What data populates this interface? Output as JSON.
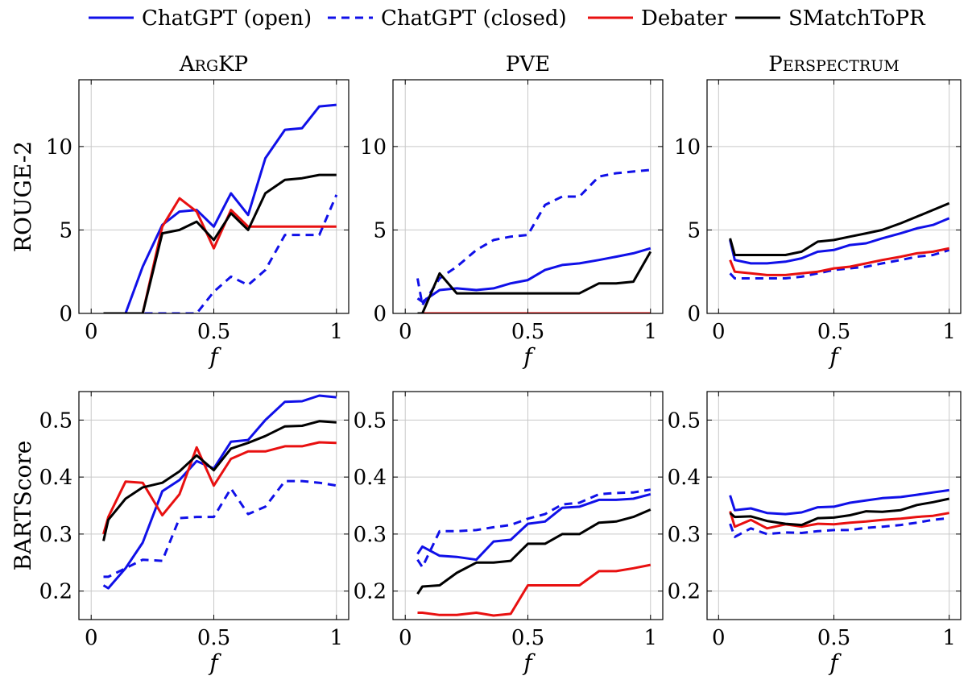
{
  "legend": [
    {
      "label": "ChatGPT (open)",
      "color": "#1010e8",
      "dash": "solid"
    },
    {
      "label": "ChatGPT (closed)",
      "color": "#1010e8",
      "dash": "dashed"
    },
    {
      "label": "Debater",
      "color": "#e81010",
      "dash": "solid"
    },
    {
      "label": "SMatchToPR",
      "color": "#000000",
      "dash": "solid"
    }
  ],
  "chart_data": [
    {
      "type": "line",
      "title": "ArgKP",
      "xlabel": "f",
      "ylabel": "ROUGE-2",
      "xlim": [
        -0.05,
        1.05
      ],
      "ylim": [
        0,
        14
      ],
      "xticks": [
        {
          "v": 0,
          "label": "0"
        },
        {
          "v": 0.5,
          "label": "0.5"
        },
        {
          "v": 1,
          "label": "1"
        }
      ],
      "yticks": [
        {
          "v": 0,
          "label": "0"
        },
        {
          "v": 5,
          "label": "5"
        },
        {
          "v": 10,
          "label": "10"
        }
      ],
      "grid": true,
      "x": [
        0.05,
        0.07,
        0.14,
        0.21,
        0.29,
        0.36,
        0.43,
        0.5,
        0.57,
        0.64,
        0.71,
        0.79,
        0.86,
        0.93,
        1.0
      ],
      "series": [
        {
          "name": "ChatGPT (open)",
          "values": [
            0,
            0,
            0,
            2.8,
            5.3,
            6.1,
            6.2,
            5.2,
            7.2,
            5.9,
            9.3,
            11.0,
            11.1,
            12.4,
            12.5
          ]
        },
        {
          "name": "ChatGPT (closed)",
          "values": [
            0,
            0,
            0,
            0,
            0,
            0,
            0,
            1.3,
            2.2,
            1.7,
            2.6,
            4.7,
            4.7,
            4.7,
            7.1
          ]
        },
        {
          "name": "Debater",
          "values": [
            0,
            0,
            0,
            0,
            5.2,
            6.9,
            6.1,
            3.9,
            6.2,
            5.2,
            5.2,
            5.2,
            5.2,
            5.2,
            5.2
          ]
        },
        {
          "name": "SMatchToPR",
          "values": [
            0,
            0,
            0,
            0,
            4.8,
            5.0,
            5.5,
            4.4,
            6.0,
            5.0,
            7.2,
            8.0,
            8.1,
            8.3,
            8.3
          ]
        }
      ]
    },
    {
      "type": "line",
      "title": "PVE",
      "xlabel": "f",
      "ylabel": "",
      "xlim": [
        -0.05,
        1.05
      ],
      "ylim": [
        0,
        14
      ],
      "xticks": [
        {
          "v": 0,
          "label": "0"
        },
        {
          "v": 0.5,
          "label": "0.5"
        },
        {
          "v": 1,
          "label": "1"
        }
      ],
      "yticks": [
        {
          "v": 0,
          "label": "0"
        },
        {
          "v": 5,
          "label": "5"
        },
        {
          "v": 10,
          "label": "10"
        }
      ],
      "grid": true,
      "x": [
        0.05,
        0.07,
        0.14,
        0.21,
        0.29,
        0.36,
        0.43,
        0.5,
        0.57,
        0.64,
        0.71,
        0.79,
        0.86,
        0.93,
        1.0
      ],
      "series": [
        {
          "name": "ChatGPT (open)",
          "values": [
            0.9,
            0.7,
            1.4,
            1.5,
            1.4,
            1.5,
            1.8,
            2.0,
            2.6,
            2.9,
            3.0,
            3.2,
            3.4,
            3.6,
            3.9
          ]
        },
        {
          "name": "ChatGPT (closed)",
          "values": [
            2.1,
            0.5,
            2.1,
            2.8,
            3.8,
            4.4,
            4.6,
            4.7,
            6.5,
            7.0,
            7.0,
            8.2,
            8.4,
            8.5,
            8.6
          ]
        },
        {
          "name": "Debater",
          "values": [
            0,
            0,
            0,
            0,
            0,
            0,
            0,
            0,
            0,
            0,
            0,
            0,
            0,
            0,
            0
          ]
        },
        {
          "name": "SMatchToPR",
          "values": [
            0,
            0,
            2.4,
            1.2,
            1.2,
            1.2,
            1.2,
            1.2,
            1.2,
            1.2,
            1.2,
            1.8,
            1.8,
            1.9,
            3.7
          ]
        }
      ]
    },
    {
      "type": "line",
      "title": "Perspectrum",
      "xlabel": "f",
      "ylabel": "",
      "xlim": [
        -0.05,
        1.05
      ],
      "ylim": [
        0,
        14
      ],
      "xticks": [
        {
          "v": 0,
          "label": "0"
        },
        {
          "v": 0.5,
          "label": "0.5"
        },
        {
          "v": 1,
          "label": "1"
        }
      ],
      "yticks": [
        {
          "v": 0,
          "label": "0"
        },
        {
          "v": 5,
          "label": "5"
        },
        {
          "v": 10,
          "label": "10"
        }
      ],
      "grid": true,
      "x": [
        0.05,
        0.07,
        0.14,
        0.21,
        0.29,
        0.36,
        0.43,
        0.5,
        0.57,
        0.64,
        0.71,
        0.79,
        0.86,
        0.93,
        1.0
      ],
      "series": [
        {
          "name": "ChatGPT (open)",
          "values": [
            4.4,
            3.2,
            3.0,
            3.0,
            3.1,
            3.3,
            3.7,
            3.8,
            4.1,
            4.2,
            4.5,
            4.8,
            5.1,
            5.3,
            5.7
          ]
        },
        {
          "name": "ChatGPT (closed)",
          "values": [
            2.4,
            2.1,
            2.1,
            2.1,
            2.1,
            2.2,
            2.4,
            2.6,
            2.7,
            2.8,
            3.0,
            3.2,
            3.4,
            3.5,
            3.8
          ]
        },
        {
          "name": "Debater",
          "values": [
            3.2,
            2.5,
            2.4,
            2.3,
            2.3,
            2.4,
            2.5,
            2.7,
            2.8,
            3.0,
            3.2,
            3.4,
            3.6,
            3.7,
            3.9
          ]
        },
        {
          "name": "SMatchToPR",
          "values": [
            4.5,
            3.5,
            3.5,
            3.5,
            3.5,
            3.7,
            4.3,
            4.4,
            4.6,
            4.8,
            5.0,
            5.4,
            5.8,
            6.2,
            6.6
          ]
        }
      ]
    },
    {
      "type": "line",
      "title": "",
      "xlabel": "f",
      "ylabel": "BARTScore",
      "xlim": [
        -0.05,
        1.05
      ],
      "ylim": [
        0.15,
        0.55
      ],
      "xticks": [
        {
          "v": 0,
          "label": "0"
        },
        {
          "v": 0.5,
          "label": "0.5"
        },
        {
          "v": 1,
          "label": "1"
        }
      ],
      "yticks": [
        {
          "v": 0.2,
          "label": "0.2"
        },
        {
          "v": 0.3,
          "label": "0.3"
        },
        {
          "v": 0.4,
          "label": "0.4"
        },
        {
          "v": 0.5,
          "label": "0.5"
        }
      ],
      "grid": true,
      "x": [
        0.05,
        0.07,
        0.14,
        0.21,
        0.29,
        0.36,
        0.43,
        0.5,
        0.57,
        0.64,
        0.71,
        0.79,
        0.86,
        0.93,
        1.0
      ],
      "series": [
        {
          "name": "ChatGPT (open)",
          "values": [
            0.21,
            0.205,
            0.24,
            0.285,
            0.375,
            0.395,
            0.428,
            0.415,
            0.462,
            0.465,
            0.5,
            0.532,
            0.533,
            0.543,
            0.54
          ]
        },
        {
          "name": "ChatGPT (closed)",
          "values": [
            0.225,
            0.225,
            0.24,
            0.255,
            0.253,
            0.328,
            0.33,
            0.33,
            0.38,
            0.335,
            0.348,
            0.393,
            0.393,
            0.39,
            0.385
          ]
        },
        {
          "name": "Debater",
          "values": [
            0.3,
            0.33,
            0.392,
            0.39,
            0.333,
            0.37,
            0.452,
            0.385,
            0.432,
            0.445,
            0.445,
            0.454,
            0.454,
            0.461,
            0.46
          ]
        },
        {
          "name": "SMatchToPR",
          "values": [
            0.288,
            0.325,
            0.362,
            0.382,
            0.39,
            0.41,
            0.438,
            0.412,
            0.45,
            0.46,
            0.472,
            0.489,
            0.49,
            0.498,
            0.496
          ]
        }
      ]
    },
    {
      "type": "line",
      "title": "",
      "xlabel": "f",
      "ylabel": "",
      "xlim": [
        -0.05,
        1.05
      ],
      "ylim": [
        0.15,
        0.55
      ],
      "xticks": [
        {
          "v": 0,
          "label": "0"
        },
        {
          "v": 0.5,
          "label": "0.5"
        },
        {
          "v": 1,
          "label": "1"
        }
      ],
      "yticks": [
        {
          "v": 0.2,
          "label": "0.2"
        },
        {
          "v": 0.3,
          "label": "0.3"
        },
        {
          "v": 0.4,
          "label": "0.4"
        },
        {
          "v": 0.5,
          "label": "0.5"
        }
      ],
      "grid": true,
      "x": [
        0.05,
        0.07,
        0.14,
        0.21,
        0.29,
        0.36,
        0.43,
        0.5,
        0.57,
        0.64,
        0.71,
        0.79,
        0.86,
        0.93,
        1.0
      ],
      "series": [
        {
          "name": "ChatGPT (open)",
          "values": [
            0.265,
            0.278,
            0.262,
            0.26,
            0.255,
            0.287,
            0.29,
            0.318,
            0.322,
            0.346,
            0.348,
            0.36,
            0.36,
            0.362,
            0.37
          ]
        },
        {
          "name": "ChatGPT (closed)",
          "values": [
            0.255,
            0.242,
            0.305,
            0.305,
            0.307,
            0.312,
            0.316,
            0.327,
            0.335,
            0.352,
            0.355,
            0.37,
            0.372,
            0.373,
            0.378
          ]
        },
        {
          "name": "Debater",
          "values": [
            0.162,
            0.162,
            0.158,
            0.158,
            0.162,
            0.157,
            0.16,
            0.21,
            0.21,
            0.21,
            0.21,
            0.235,
            0.235,
            0.24,
            0.246
          ]
        },
        {
          "name": "SMatchToPR",
          "values": [
            0.195,
            0.208,
            0.21,
            0.232,
            0.25,
            0.25,
            0.253,
            0.283,
            0.283,
            0.3,
            0.3,
            0.32,
            0.322,
            0.33,
            0.343
          ]
        }
      ]
    },
    {
      "type": "line",
      "title": "",
      "xlabel": "f",
      "ylabel": "",
      "xlim": [
        -0.05,
        1.05
      ],
      "ylim": [
        0.15,
        0.55
      ],
      "xticks": [
        {
          "v": 0,
          "label": "0"
        },
        {
          "v": 0.5,
          "label": "0.5"
        },
        {
          "v": 1,
          "label": "1"
        }
      ],
      "yticks": [
        {
          "v": 0.2,
          "label": "0.2"
        },
        {
          "v": 0.3,
          "label": "0.3"
        },
        {
          "v": 0.4,
          "label": "0.4"
        },
        {
          "v": 0.5,
          "label": "0.5"
        }
      ],
      "grid": true,
      "x": [
        0.05,
        0.07,
        0.14,
        0.21,
        0.29,
        0.36,
        0.43,
        0.5,
        0.57,
        0.64,
        0.71,
        0.79,
        0.86,
        0.93,
        1.0
      ],
      "series": [
        {
          "name": "ChatGPT (open)",
          "values": [
            0.368,
            0.342,
            0.345,
            0.337,
            0.335,
            0.338,
            0.347,
            0.348,
            0.355,
            0.359,
            0.363,
            0.365,
            0.369,
            0.373,
            0.377
          ]
        },
        {
          "name": "ChatGPT (closed)",
          "values": [
            0.318,
            0.295,
            0.31,
            0.3,
            0.303,
            0.302,
            0.305,
            0.307,
            0.307,
            0.311,
            0.313,
            0.316,
            0.32,
            0.325,
            0.328
          ]
        },
        {
          "name": "Debater",
          "values": [
            0.34,
            0.313,
            0.325,
            0.31,
            0.317,
            0.313,
            0.318,
            0.317,
            0.32,
            0.322,
            0.325,
            0.327,
            0.33,
            0.332,
            0.337
          ]
        },
        {
          "name": "SMatchToPR",
          "values": [
            0.337,
            0.33,
            0.331,
            0.323,
            0.318,
            0.316,
            0.328,
            0.329,
            0.333,
            0.34,
            0.339,
            0.342,
            0.351,
            0.356,
            0.362
          ]
        }
      ]
    }
  ]
}
